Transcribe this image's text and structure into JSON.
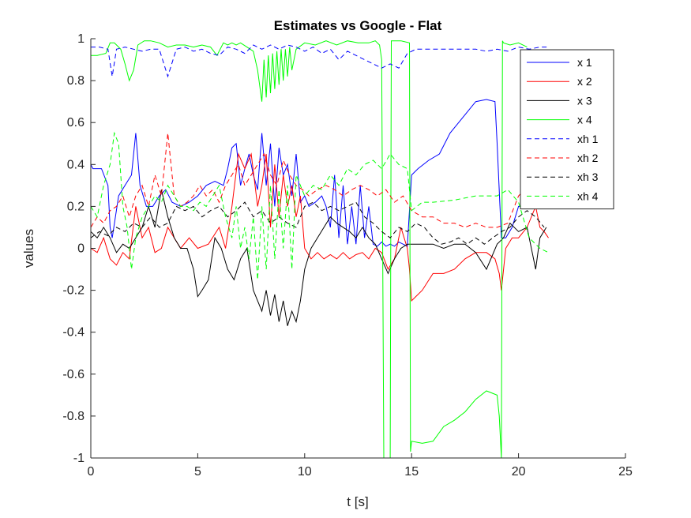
{
  "chart_data": {
    "type": "line",
    "title": "Estimates vs Google - Flat",
    "xlabel": "t [s]",
    "ylabel": "values",
    "xlim": [
      0,
      25
    ],
    "ylim": [
      -1,
      1
    ],
    "xticks": [
      "0",
      "5",
      "10",
      "15",
      "20",
      "25"
    ],
    "yticks": [
      "-1",
      "-0.8",
      "-0.6",
      "-0.4",
      "-0.2",
      "0",
      "0.2",
      "0.4",
      "0.6",
      "0.8",
      "1"
    ],
    "grid": false,
    "legend_position": "top-right",
    "series": [
      {
        "name": "x 1",
        "color": "#0000ff",
        "style": "solid",
        "x": [
          0,
          0.1,
          0.5,
          0.8,
          0.9,
          1.0,
          1.3,
          1.6,
          1.9,
          2.1,
          2.3,
          2.6,
          2.9,
          3.2,
          3.5,
          3.8,
          4.2,
          4.6,
          5.0,
          5.4,
          5.8,
          6.2,
          6.4,
          6.6,
          6.8,
          7.0,
          7.2,
          7.4,
          7.6,
          7.8,
          8.0,
          8.2,
          8.4,
          8.6,
          8.8,
          9.0,
          9.2,
          9.4,
          9.6,
          9.8,
          10.0,
          10.2,
          10.5,
          10.8,
          11.0,
          11.2,
          11.4,
          11.6,
          11.8,
          12.0,
          12.2,
          12.4,
          12.6,
          12.8,
          13.0,
          13.2,
          13.4,
          13.6,
          13.8,
          14.0,
          14.2,
          14.4,
          14.6,
          14.8,
          15.0,
          15.3,
          15.8,
          16.3,
          16.8,
          17.2,
          17.6,
          18.0,
          18.5,
          18.9,
          19.0,
          19.2,
          19.4,
          19.7,
          20.0,
          20.4,
          20.8,
          21.0,
          21.3
        ],
        "y": [
          0.4,
          0.38,
          0.38,
          0.3,
          0.1,
          0.05,
          0.25,
          0.3,
          0.35,
          0.55,
          0.3,
          0.2,
          0.2,
          0.25,
          0.28,
          0.22,
          0.2,
          0.22,
          0.25,
          0.3,
          0.32,
          0.3,
          0.38,
          0.48,
          0.5,
          0.3,
          0.38,
          0.45,
          0.35,
          0.28,
          0.55,
          0.3,
          0.5,
          0.2,
          0.48,
          0.35,
          0.4,
          0.25,
          0.45,
          0.22,
          0.25,
          0.2,
          0.22,
          0.25,
          0.2,
          0.1,
          0.35,
          0.05,
          0.3,
          0.02,
          0.2,
          0.02,
          0.3,
          0.05,
          0.2,
          0.02,
          0.01,
          0.03,
          0.01,
          0.02,
          0.01,
          0.03,
          0.02,
          0.01,
          0.35,
          0.38,
          0.42,
          0.45,
          0.55,
          0.6,
          0.65,
          0.7,
          0.71,
          0.7,
          0.5,
          0.05,
          0.05,
          0.1,
          0.2,
          0.2,
          0.25,
          0.25,
          0.35
        ]
      },
      {
        "name": "x 2",
        "color": "#ff0000",
        "style": "solid",
        "x": [
          0,
          0.3,
          0.6,
          0.9,
          1.2,
          1.5,
          1.8,
          2.1,
          2.4,
          2.7,
          3.0,
          3.3,
          3.6,
          3.9,
          4.2,
          4.6,
          5.0,
          5.5,
          6.0,
          6.3,
          6.6,
          6.9,
          7.2,
          7.5,
          7.8,
          8.0,
          8.2,
          8.4,
          8.6,
          8.8,
          9.0,
          9.2,
          9.4,
          9.6,
          9.8,
          10.0,
          10.3,
          10.6,
          10.9,
          11.2,
          11.5,
          11.8,
          12.1,
          12.4,
          12.7,
          13.0,
          13.3,
          13.6,
          13.9,
          14.2,
          14.5,
          14.8,
          14.9,
          15.0,
          15.5,
          16.0,
          16.5,
          17.0,
          17.5,
          18.0,
          18.5,
          18.9,
          19.1,
          19.2,
          19.4,
          19.7,
          20.0,
          20.4,
          20.8,
          21.0,
          21.2,
          21.4
        ],
        "y": [
          0,
          -0.02,
          0.05,
          -0.05,
          -0.08,
          -0.02,
          -0.05,
          0.2,
          0.05,
          0.1,
          -0.02,
          0.0,
          0.1,
          0.05,
          0.0,
          0.05,
          0.0,
          0.02,
          0.1,
          0.0,
          0.2,
          0.45,
          0.38,
          0.45,
          0.2,
          0.3,
          0.45,
          0.1,
          0.4,
          0.15,
          0.35,
          0.2,
          0.3,
          0.15,
          0.25,
          0.0,
          -0.05,
          -0.02,
          -0.05,
          -0.03,
          -0.05,
          -0.02,
          -0.05,
          -0.03,
          -0.02,
          -0.05,
          0.0,
          -0.02,
          -0.1,
          -0.05,
          0.1,
          0.0,
          -0.1,
          -0.25,
          -0.2,
          -0.12,
          -0.12,
          -0.1,
          -0.05,
          -0.02,
          -0.02,
          -0.05,
          -0.12,
          -0.2,
          0.0,
          0.05,
          0.05,
          0.1,
          0.2,
          0.1,
          0.08,
          0.05
        ]
      },
      {
        "name": "x 3",
        "color": "#000000",
        "style": "solid",
        "x": [
          0,
          0.3,
          0.6,
          0.9,
          1.2,
          1.5,
          1.8,
          2.1,
          2.4,
          2.7,
          3.0,
          3.3,
          3.6,
          3.9,
          4.2,
          4.5,
          4.8,
          5.0,
          5.2,
          5.5,
          5.8,
          6.1,
          6.4,
          6.7,
          7.0,
          7.3,
          7.6,
          7.8,
          8.0,
          8.2,
          8.4,
          8.6,
          8.8,
          9.0,
          9.2,
          9.4,
          9.6,
          9.8,
          10.0,
          10.3,
          10.6,
          10.9,
          11.2,
          11.5,
          11.8,
          12.1,
          12.4,
          12.7,
          13.0,
          13.3,
          13.6,
          13.9,
          14.2,
          14.5,
          14.8,
          15.0,
          15.5,
          16.0,
          16.5,
          17.0,
          17.5,
          18.0,
          18.5,
          19.0,
          19.3,
          19.6,
          20.0,
          20.4,
          20.8,
          21.0,
          21.3
        ],
        "y": [
          0.08,
          0.05,
          0.1,
          0.05,
          -0.02,
          0.02,
          0.0,
          0.05,
          0.1,
          0.2,
          0.1,
          0.28,
          0.15,
          0.05,
          0.0,
          0.0,
          -0.1,
          -0.23,
          -0.2,
          -0.15,
          0.05,
          0.0,
          -0.1,
          -0.15,
          -0.05,
          0.0,
          -0.2,
          -0.25,
          -0.3,
          -0.2,
          -0.32,
          -0.22,
          -0.35,
          -0.25,
          -0.37,
          -0.3,
          -0.35,
          -0.25,
          -0.1,
          0.0,
          0.05,
          0.1,
          0.15,
          0.12,
          0.1,
          0.08,
          0.05,
          0.1,
          0.05,
          0.02,
          -0.05,
          -0.12,
          -0.05,
          0.0,
          0.02,
          0.02,
          0.02,
          0.02,
          0.0,
          0.02,
          0.02,
          -0.02,
          -0.1,
          0.02,
          0.05,
          0.12,
          0.08,
          0.1,
          -0.1,
          0.05,
          0.1
        ]
      },
      {
        "name": "x 4",
        "color": "#00ff00",
        "style": "solid",
        "x": [
          0,
          0.3,
          0.7,
          0.9,
          1.1,
          1.4,
          1.6,
          1.8,
          2.0,
          2.2,
          2.5,
          2.8,
          3.2,
          3.6,
          4.0,
          4.4,
          4.8,
          5.2,
          5.6,
          5.9,
          6.2,
          6.4,
          6.6,
          6.8,
          7.0,
          7.3,
          7.6,
          7.8,
          8.0,
          8.1,
          8.2,
          8.3,
          8.4,
          8.5,
          8.6,
          8.7,
          8.8,
          8.9,
          9.0,
          9.1,
          9.2,
          9.3,
          9.4,
          9.6,
          10.0,
          10.5,
          11.0,
          11.5,
          12.0,
          12.5,
          13.0,
          13.3,
          13.5,
          13.6,
          13.7,
          13.75,
          14.0,
          14.05,
          14.1,
          14.5,
          14.9,
          14.95,
          15.0,
          15.5,
          16.0,
          16.5,
          17.0,
          17.5,
          18.0,
          18.5,
          19.0,
          19.1,
          19.2,
          19.25,
          19.3,
          19.6,
          20.0,
          20.4
        ],
        "y": [
          0.92,
          0.92,
          0.93,
          0.98,
          0.98,
          0.95,
          0.88,
          0.8,
          0.85,
          0.97,
          0.99,
          0.99,
          0.98,
          0.96,
          0.97,
          0.97,
          0.96,
          0.97,
          0.96,
          0.92,
          0.98,
          0.97,
          0.98,
          0.97,
          0.98,
          0.96,
          0.94,
          0.85,
          0.7,
          0.9,
          0.72,
          0.92,
          0.74,
          0.93,
          0.76,
          0.94,
          0.78,
          0.95,
          0.8,
          0.95,
          0.82,
          0.96,
          0.85,
          0.95,
          0.98,
          0.97,
          0.99,
          0.97,
          0.99,
          0.98,
          0.98,
          0.99,
          0.97,
          0.9,
          -1,
          -1,
          -1,
          0.99,
          0.99,
          0.99,
          0.98,
          -0.97,
          -0.92,
          -0.93,
          -0.92,
          -0.85,
          -0.82,
          -0.78,
          -0.72,
          -0.68,
          -0.7,
          -0.8,
          -1,
          0.99,
          0.98,
          0.97,
          0.98,
          0.96
        ]
      },
      {
        "name": "xh 1",
        "color": "#0000ff",
        "style": "dashed",
        "x": [
          0,
          0.4,
          0.8,
          1.0,
          1.2,
          1.6,
          2.0,
          2.4,
          2.8,
          3.2,
          3.6,
          4.0,
          4.4,
          4.8,
          5.2,
          5.6,
          6.0,
          6.4,
          6.8,
          7.2,
          7.6,
          8.0,
          8.4,
          8.8,
          9.2,
          9.6,
          10.0,
          10.4,
          10.8,
          11.2,
          11.6,
          12.0,
          12.4,
          12.8,
          13.2,
          13.6,
          14.0,
          14.4,
          14.8,
          15.2,
          16.0,
          17.0,
          18.0,
          18.5,
          19.0,
          19.5,
          20.0,
          20.5,
          21.0,
          21.4
        ],
        "y": [
          0.96,
          0.96,
          0.95,
          0.82,
          0.95,
          0.96,
          0.95,
          0.94,
          0.95,
          0.95,
          0.82,
          0.95,
          0.96,
          0.94,
          0.95,
          0.93,
          0.92,
          0.96,
          0.95,
          0.93,
          0.97,
          0.95,
          0.97,
          0.95,
          0.97,
          0.96,
          0.94,
          0.96,
          0.93,
          0.95,
          0.9,
          0.94,
          0.92,
          0.9,
          0.88,
          0.86,
          0.88,
          0.86,
          0.93,
          0.95,
          0.95,
          0.95,
          0.95,
          0.94,
          0.95,
          0.94,
          0.96,
          0.95,
          0.96,
          0.96
        ]
      },
      {
        "name": "xh 2",
        "color": "#ff0000",
        "style": "dashed",
        "x": [
          0,
          0.3,
          0.6,
          0.9,
          1.2,
          1.5,
          1.8,
          2.1,
          2.4,
          2.7,
          3.0,
          3.3,
          3.6,
          3.9,
          4.2,
          4.5,
          4.8,
          5.1,
          5.4,
          5.7,
          6.0,
          6.3,
          6.6,
          6.9,
          7.2,
          7.5,
          7.8,
          8.1,
          8.4,
          8.7,
          9.0,
          9.3,
          9.6,
          9.9,
          10.2,
          10.6,
          11.0,
          11.4,
          11.8,
          12.2,
          12.6,
          13.0,
          13.4,
          13.8,
          14.2,
          14.6,
          15.0,
          15.5,
          16.0,
          16.5,
          17.0,
          17.5,
          18.0,
          18.5,
          19.0,
          19.5,
          20.0,
          20.5,
          21.0,
          21.4
        ],
        "y": [
          0.1,
          0.15,
          0.12,
          0.18,
          0.2,
          0.25,
          0.15,
          0.25,
          0.3,
          0.2,
          0.35,
          0.25,
          0.55,
          0.25,
          0.2,
          0.22,
          0.25,
          0.3,
          0.25,
          0.28,
          0.22,
          0.3,
          0.35,
          0.4,
          0.3,
          0.35,
          0.4,
          0.45,
          0.35,
          0.3,
          0.42,
          0.35,
          0.3,
          0.28,
          0.25,
          0.28,
          0.3,
          0.28,
          0.25,
          0.28,
          0.3,
          0.28,
          0.25,
          0.28,
          0.22,
          0.25,
          0.18,
          0.15,
          0.15,
          0.12,
          0.12,
          0.1,
          0.12,
          0.1,
          0.1,
          0.12,
          0.25,
          0.3,
          0.35,
          0.32
        ]
      },
      {
        "name": "xh 3",
        "color": "#000000",
        "style": "dashed",
        "x": [
          0,
          0.4,
          0.8,
          1.2,
          1.6,
          2.0,
          2.4,
          2.8,
          3.2,
          3.6,
          4.0,
          4.4,
          4.8,
          5.2,
          5.6,
          6.0,
          6.4,
          6.8,
          7.2,
          7.6,
          8.0,
          8.4,
          8.8,
          9.2,
          9.6,
          10.0,
          10.4,
          10.8,
          11.2,
          11.6,
          12.0,
          12.4,
          12.8,
          13.2,
          13.6,
          14.0,
          14.4,
          14.8,
          15.2,
          15.6,
          16.0,
          16.4,
          16.8,
          17.2,
          17.6,
          18.0,
          18.4,
          18.8,
          19.2,
          19.6,
          20.0,
          20.4,
          20.8,
          21.2
        ],
        "y": [
          0.05,
          0.08,
          0.06,
          0.1,
          0.08,
          0.12,
          0.1,
          0.15,
          0.1,
          0.12,
          0.2,
          0.18,
          0.2,
          0.15,
          0.18,
          0.2,
          0.15,
          0.18,
          0.22,
          0.15,
          0.18,
          0.12,
          0.15,
          0.12,
          0.1,
          0.2,
          0.22,
          0.18,
          0.2,
          0.18,
          0.2,
          0.22,
          0.15,
          0.12,
          0.08,
          0.05,
          0.1,
          0.08,
          0.12,
          0.1,
          0.05,
          0.02,
          0.03,
          0.05,
          0.02,
          0.05,
          0.02,
          0.05,
          0.08,
          0.1,
          0.15,
          0.18,
          0.15,
          0.1
        ]
      },
      {
        "name": "xh 4",
        "color": "#00ff00",
        "style": "dashed",
        "x": [
          0,
          0.3,
          0.6,
          0.9,
          1.1,
          1.3,
          1.5,
          1.7,
          1.9,
          2.1,
          2.4,
          2.7,
          3.0,
          3.3,
          3.6,
          3.9,
          4.2,
          4.5,
          4.8,
          5.1,
          5.4,
          5.7,
          6.0,
          6.3,
          6.6,
          6.8,
          7.0,
          7.2,
          7.4,
          7.6,
          7.8,
          8.0,
          8.2,
          8.4,
          8.6,
          8.8,
          9.0,
          9.2,
          9.4,
          9.6,
          10.0,
          10.4,
          10.8,
          11.2,
          11.6,
          12.0,
          12.4,
          12.8,
          13.2,
          13.6,
          14.0,
          14.4,
          14.8,
          15.0,
          15.5,
          16.0,
          17.0,
          18.0,
          19.0,
          19.5,
          20.0,
          20.5,
          21.0,
          21.4
        ],
        "y": [
          0.2,
          0.15,
          0.3,
          0.4,
          0.55,
          0.5,
          0.2,
          0.1,
          -0.1,
          0.05,
          0.15,
          0.2,
          0.25,
          0.22,
          0.3,
          0.25,
          0.2,
          0.2,
          0.18,
          0.22,
          0.2,
          0.25,
          0.3,
          0.15,
          0.05,
          0.2,
          0.0,
          0.1,
          -0.05,
          0.15,
          -0.15,
          0.2,
          -0.1,
          0.3,
          -0.05,
          0.28,
          0.0,
          0.3,
          -0.1,
          0.35,
          0.25,
          0.3,
          0.28,
          0.35,
          0.3,
          0.38,
          0.35,
          0.4,
          0.42,
          0.38,
          0.45,
          0.4,
          0.38,
          0.18,
          0.22,
          0.22,
          0.23,
          0.25,
          0.25,
          0.28,
          0.22,
          0.05,
          0.0,
          -0.02
        ]
      }
    ]
  }
}
